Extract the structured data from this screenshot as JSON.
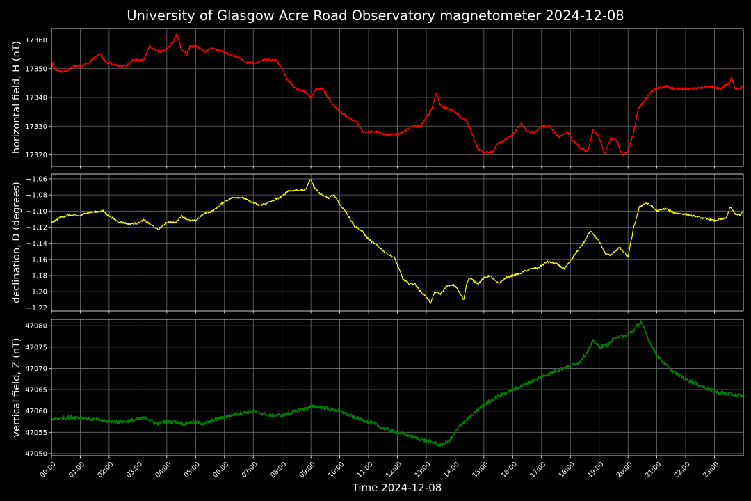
{
  "title": "University of Glasgow Acre Road Observatory magnetometer 2024-12-08",
  "xlabel": "Time 2024-12-08",
  "colors": {
    "background": "#000000",
    "text": "#ffffff",
    "grid": "#6e6e6e",
    "spine": "#ffffff"
  },
  "chart_data": [
    {
      "type": "line",
      "ylabel": "horizontal field, H (nT)",
      "color": "#ff0000",
      "line_width": 1.5,
      "noise": 0.4,
      "grid": true,
      "xlim": [
        0,
        24
      ],
      "ylim": [
        17316,
        17364
      ],
      "yticks": [
        17320,
        17330,
        17340,
        17350,
        17360
      ],
      "xticks": [
        "00:00",
        "01:00",
        "02:00",
        "03:00",
        "04:00",
        "05:00",
        "06:00",
        "07:00",
        "08:00",
        "09:00",
        "10:00",
        "11:00",
        "12:00",
        "13:00",
        "14:00",
        "15:00",
        "16:00",
        "17:00",
        "18:00",
        "19:00",
        "20:00",
        "21:00",
        "22:00",
        "23:00"
      ],
      "series": [
        {
          "x": [
            0,
            0.05,
            0.1,
            0.3,
            0.5,
            0.8,
            1.0,
            1.3,
            1.5,
            1.7,
            1.9,
            2.0,
            2.3,
            2.6,
            2.8,
            3.0,
            3.2,
            3.4,
            3.5,
            3.7,
            3.9,
            4.0,
            4.2,
            4.35,
            4.5,
            4.7,
            4.8,
            5.0,
            5.3,
            5.6,
            5.9,
            6.2,
            6.5,
            6.8,
            7.1,
            7.3,
            7.6,
            7.8,
            8.0,
            8.2,
            8.5,
            8.8,
            9.0,
            9.2,
            9.4,
            9.6,
            9.8,
            10.0,
            10.3,
            10.6,
            10.8,
            11.0,
            11.3,
            11.6,
            11.9,
            12.2,
            12.5,
            12.8,
            13.0,
            13.2,
            13.35,
            13.5,
            13.8,
            14.0,
            14.2,
            14.4,
            14.6,
            14.8,
            15.0,
            15.3,
            15.5,
            15.7,
            16.0,
            16.3,
            16.5,
            16.8,
            17.0,
            17.3,
            17.6,
            17.9,
            18.1,
            18.4,
            18.6,
            18.8,
            19.0,
            19.2,
            19.4,
            19.6,
            19.8,
            20.0,
            20.2,
            20.35,
            20.5,
            20.8,
            21.0,
            21.3,
            21.6,
            22.0,
            22.4,
            22.8,
            23.2,
            23.5,
            23.6,
            23.7,
            23.9,
            24.0
          ],
          "y": [
            17350,
            17352,
            17350,
            17349,
            17349,
            17351,
            17351,
            17352,
            17354,
            17355,
            17352,
            17352,
            17351,
            17351,
            17353,
            17353,
            17353,
            17358,
            17357,
            17356,
            17356,
            17357,
            17359,
            17362,
            17357,
            17355,
            17358,
            17358,
            17356,
            17357,
            17356,
            17355,
            17354,
            17352,
            17352,
            17353,
            17353,
            17353,
            17350,
            17346,
            17343,
            17342,
            17340,
            17343,
            17343,
            17340,
            17337,
            17335,
            17333,
            17331,
            17328,
            17328,
            17328,
            17327,
            17327,
            17328,
            17330,
            17330,
            17333,
            17336,
            17342,
            17337,
            17336,
            17335,
            17333,
            17332,
            17327,
            17322,
            17321,
            17321,
            17324,
            17325,
            17327,
            17331,
            17328,
            17328,
            17330,
            17330,
            17326,
            17328,
            17325,
            17322,
            17321,
            17329,
            17326,
            17320,
            17326,
            17325,
            17320,
            17321,
            17328,
            17336,
            17338,
            17342,
            17343,
            17344,
            17343,
            17343,
            17343,
            17344,
            17343,
            17345,
            17347,
            17343,
            17343,
            17344
          ]
        }
      ]
    },
    {
      "type": "line",
      "ylabel": "declination, D (degrees)",
      "color": "#ffff00",
      "line_width": 1.2,
      "noise": 0.0012,
      "grid": true,
      "xlim": [
        0,
        24
      ],
      "ylim": [
        -1.224,
        -1.054
      ],
      "yticks": [
        -1.06,
        -1.08,
        -1.1,
        -1.12,
        -1.14,
        -1.16,
        -1.18,
        -1.2,
        -1.22
      ],
      "xticks": [
        "00:00",
        "01:00",
        "02:00",
        "03:00",
        "04:00",
        "05:00",
        "06:00",
        "07:00",
        "08:00",
        "09:00",
        "10:00",
        "11:00",
        "12:00",
        "13:00",
        "14:00",
        "15:00",
        "16:00",
        "17:00",
        "18:00",
        "19:00",
        "20:00",
        "21:00",
        "22:00",
        "23:00"
      ],
      "series": [
        {
          "x": [
            0,
            0.3,
            0.6,
            1.0,
            1.2,
            1.5,
            1.8,
            2.0,
            2.3,
            2.7,
            3.0,
            3.2,
            3.5,
            3.7,
            4.0,
            4.3,
            4.5,
            4.8,
            5.0,
            5.3,
            5.6,
            6.0,
            6.3,
            6.6,
            6.9,
            7.2,
            7.5,
            7.8,
            8.0,
            8.2,
            8.5,
            8.8,
            9.0,
            9.1,
            9.3,
            9.6,
            9.8,
            10.0,
            10.2,
            10.5,
            10.8,
            11.0,
            11.3,
            11.6,
            11.9,
            12.2,
            12.4,
            12.6,
            12.8,
            13.0,
            13.15,
            13.3,
            13.5,
            13.7,
            14.0,
            14.3,
            14.4,
            14.5,
            14.8,
            15.0,
            15.2,
            15.5,
            15.8,
            16.2,
            16.6,
            16.9,
            17.2,
            17.5,
            17.8,
            18.0,
            18.2,
            18.5,
            18.7,
            19.0,
            19.2,
            19.4,
            19.7,
            20.0,
            20.2,
            20.4,
            20.6,
            20.8,
            21.0,
            21.3,
            21.6,
            22.0,
            22.5,
            23.0,
            23.4,
            23.55,
            23.7,
            23.9,
            24.0
          ],
          "y": [
            -1.115,
            -1.108,
            -1.105,
            -1.106,
            -1.102,
            -1.101,
            -1.1,
            -1.106,
            -1.113,
            -1.116,
            -1.115,
            -1.111,
            -1.118,
            -1.123,
            -1.114,
            -1.114,
            -1.106,
            -1.112,
            -1.112,
            -1.103,
            -1.1,
            -1.088,
            -1.083,
            -1.083,
            -1.088,
            -1.093,
            -1.09,
            -1.085,
            -1.082,
            -1.075,
            -1.074,
            -1.074,
            -1.06,
            -1.07,
            -1.078,
            -1.084,
            -1.08,
            -1.092,
            -1.1,
            -1.118,
            -1.126,
            -1.135,
            -1.143,
            -1.152,
            -1.158,
            -1.185,
            -1.19,
            -1.19,
            -1.2,
            -1.206,
            -1.214,
            -1.2,
            -1.203,
            -1.193,
            -1.192,
            -1.21,
            -1.19,
            -1.183,
            -1.19,
            -1.183,
            -1.18,
            -1.19,
            -1.182,
            -1.178,
            -1.172,
            -1.17,
            -1.163,
            -1.165,
            -1.172,
            -1.162,
            -1.152,
            -1.137,
            -1.124,
            -1.138,
            -1.152,
            -1.155,
            -1.145,
            -1.157,
            -1.12,
            -1.095,
            -1.09,
            -1.093,
            -1.1,
            -1.097,
            -1.102,
            -1.104,
            -1.108,
            -1.112,
            -1.109,
            -1.095,
            -1.103,
            -1.105,
            -1.1
          ]
        }
      ]
    },
    {
      "type": "line",
      "ylabel": "vertical field, Z (nT)",
      "color": "#008000",
      "line_width": 1.6,
      "noise": 0.45,
      "grid": true,
      "xlim": [
        0,
        24
      ],
      "ylim": [
        47049.5,
        47081.5
      ],
      "yticks": [
        47050,
        47055,
        47060,
        47065,
        47070,
        47075,
        47080
      ],
      "xticks": [
        "00:00",
        "01:00",
        "02:00",
        "03:00",
        "04:00",
        "05:00",
        "06:00",
        "07:00",
        "08:00",
        "09:00",
        "10:00",
        "11:00",
        "12:00",
        "13:00",
        "14:00",
        "15:00",
        "16:00",
        "17:00",
        "18:00",
        "19:00",
        "20:00",
        "21:00",
        "22:00",
        "23:00"
      ],
      "series": [
        {
          "x": [
            0,
            0.5,
            1.0,
            1.5,
            2.0,
            2.5,
            3.0,
            3.3,
            3.6,
            4.0,
            4.3,
            4.6,
            4.9,
            5.3,
            5.7,
            6.0,
            6.5,
            7.0,
            7.5,
            8.0,
            8.5,
            9.0,
            9.3,
            9.6,
            10.0,
            10.5,
            11.0,
            11.5,
            12.0,
            12.5,
            13.0,
            13.3,
            13.5,
            13.8,
            14.0,
            14.3,
            14.6,
            15.0,
            15.5,
            16.0,
            16.5,
            17.0,
            17.5,
            18.0,
            18.3,
            18.6,
            18.8,
            19.0,
            19.3,
            19.6,
            19.9,
            20.2,
            20.45,
            20.7,
            21.0,
            21.5,
            22.0,
            22.5,
            23.0,
            23.5,
            24.0
          ],
          "y": [
            47058,
            47058.5,
            47058.5,
            47058,
            47057.5,
            47057.5,
            47058,
            47058.5,
            47057,
            47057.5,
            47057.5,
            47057,
            47057.5,
            47057,
            47058,
            47058.5,
            47059.5,
            47060,
            47059,
            47059,
            47060,
            47061,
            47061,
            47060.5,
            47060,
            47058.5,
            47057.5,
            47056,
            47055,
            47054,
            47053,
            47052.5,
            47052,
            47053,
            47055,
            47057.5,
            47059,
            47061.5,
            47063.5,
            47065,
            47066.5,
            47068,
            47069.5,
            47070.5,
            47071.5,
            47074,
            47076.5,
            47075,
            47075.5,
            47077.5,
            47077.5,
            47079,
            47081,
            47077,
            47073,
            47069.5,
            47067.5,
            47066,
            47064.5,
            47064,
            47063.5
          ]
        }
      ]
    }
  ]
}
